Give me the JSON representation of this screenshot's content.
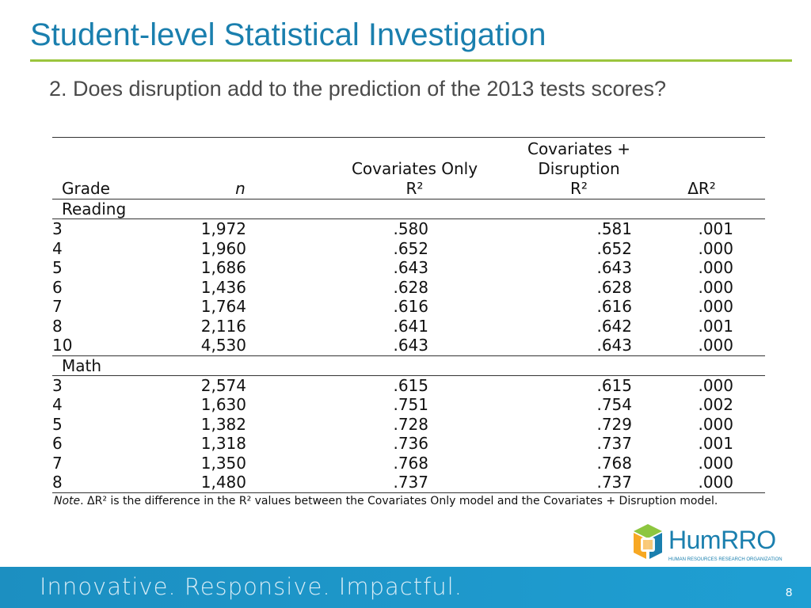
{
  "slide": {
    "title": "Student-level Statistical Investigation",
    "subtitle": "2. Does disruption add to the prediction of the 2013 tests scores?"
  },
  "table": {
    "headers": {
      "grade": "Grade",
      "n": "n",
      "cov_line1": "Covariates Only",
      "cov_line2": "R²",
      "covd_line0": "Covariates +",
      "covd_line1": "Disruption",
      "covd_line2": "R²",
      "delta": "ΔR²"
    },
    "sections": [
      {
        "name": "Reading",
        "rows": [
          {
            "grade": "3",
            "n": "1,972",
            "cov": ".580",
            "covd": ".581",
            "delta": ".001"
          },
          {
            "grade": "4",
            "n": "1,960",
            "cov": ".652",
            "covd": ".652",
            "delta": ".000"
          },
          {
            "grade": "5",
            "n": "1,686",
            "cov": ".643",
            "covd": ".643",
            "delta": ".000"
          },
          {
            "grade": "6",
            "n": "1,436",
            "cov": ".628",
            "covd": ".628",
            "delta": ".000"
          },
          {
            "grade": "7",
            "n": "1,764",
            "cov": ".616",
            "covd": ".616",
            "delta": ".000"
          },
          {
            "grade": "8",
            "n": "2,116",
            "cov": ".641",
            "covd": ".642",
            "delta": ".001"
          },
          {
            "grade": "10",
            "n": "4,530",
            "cov": ".643",
            "covd": ".643",
            "delta": ".000"
          }
        ]
      },
      {
        "name": "Math",
        "rows": [
          {
            "grade": "3",
            "n": "2,574",
            "cov": ".615",
            "covd": ".615",
            "delta": ".000"
          },
          {
            "grade": "4",
            "n": "1,630",
            "cov": ".751",
            "covd": ".754",
            "delta": ".002"
          },
          {
            "grade": "5",
            "n": "1,382",
            "cov": ".728",
            "covd": ".729",
            "delta": ".000"
          },
          {
            "grade": "6",
            "n": "1,318",
            "cov": ".736",
            "covd": ".737",
            "delta": ".001"
          },
          {
            "grade": "7",
            "n": "1,350",
            "cov": ".768",
            "covd": ".768",
            "delta": ".000"
          },
          {
            "grade": "8",
            "n": "1,480",
            "cov": ".737",
            "covd": ".737",
            "delta": ".000"
          }
        ]
      }
    ],
    "note_label": "Note",
    "note_text": ". ΔR² is the difference in the R² values between the Covariates Only model and the Covariates + Disruption model."
  },
  "logo": {
    "name": "HumRRO",
    "subtitle": "HUMAN RESOURCES RESEARCH ORGANIZATION",
    "icon": "humrro-cube-logo-icon",
    "colors": {
      "orange": "#f7a823",
      "green": "#8dc63f",
      "blue": "#1a7fae"
    }
  },
  "footer": {
    "tagline": "Innovative.  Responsive.  Impactful.",
    "page_number": "8"
  },
  "colors": {
    "title": "#1a7fae",
    "rule": "#9bc53d",
    "footer": "#1f9fd3"
  }
}
